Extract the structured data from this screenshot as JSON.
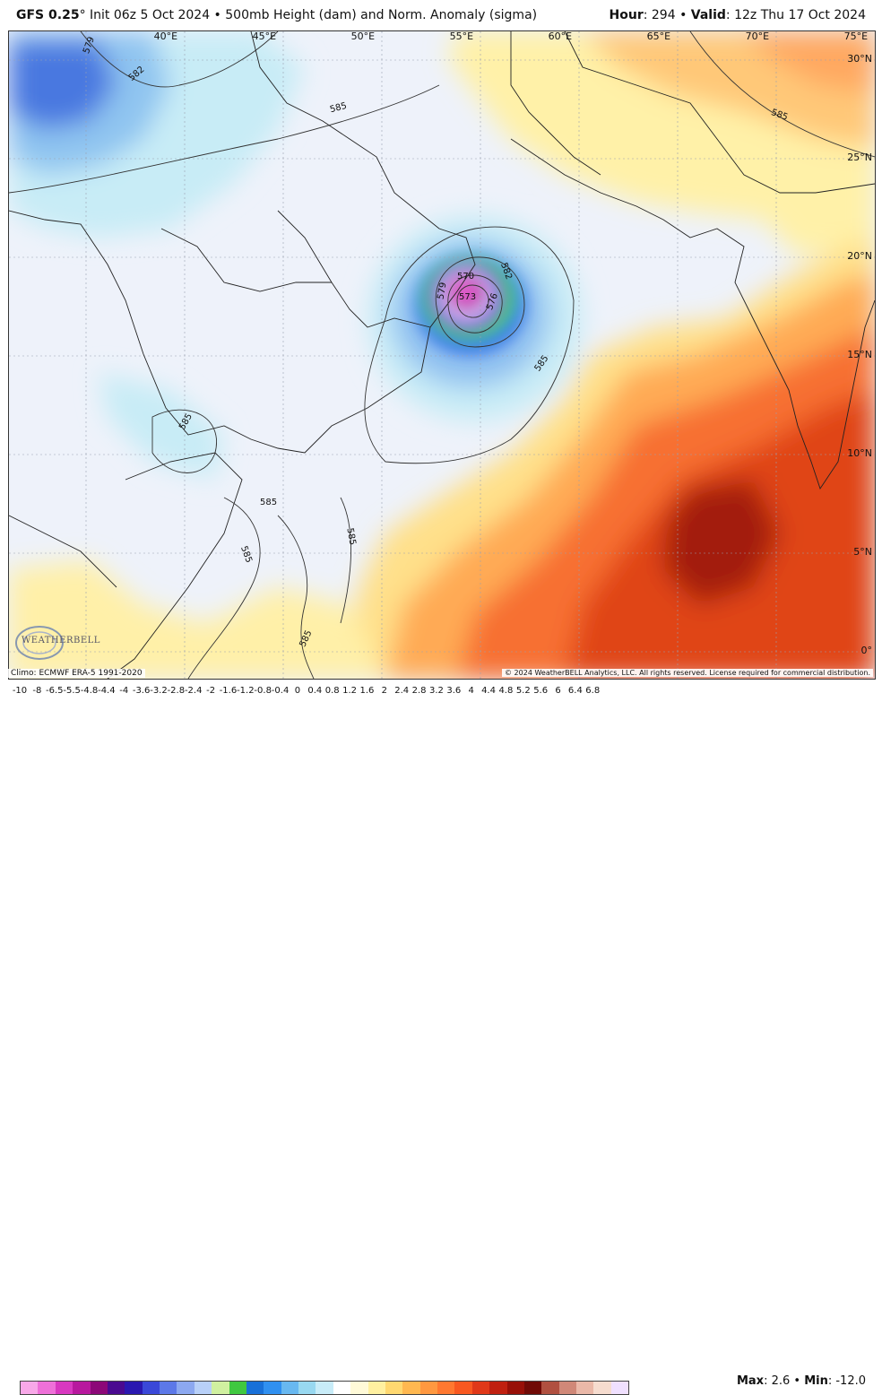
{
  "header": {
    "model": "GFS 0.25",
    "degree": "°",
    "init": " Init 06z 5 Oct 2024 • 500mb Height (dam) and Norm. Anomaly (sigma)",
    "hour_label": "Hour",
    "hour_value": ": 294 • ",
    "valid_label": "Valid",
    "valid_value": ": 12z Thu 17 Oct 2024"
  },
  "map": {
    "lon_labels": [
      {
        "text": "40°E",
        "lon": 40
      },
      {
        "text": "45°E",
        "lon": 45
      },
      {
        "text": "50°E",
        "lon": 50
      },
      {
        "text": "55°E",
        "lon": 55
      },
      {
        "text": "60°E",
        "lon": 60
      },
      {
        "text": "65°E",
        "lon": 65
      },
      {
        "text": "70°E",
        "lon": 70
      },
      {
        "text": "75°E",
        "lon": 75
      }
    ],
    "lat_labels": [
      {
        "text": "30°N",
        "lat": 30
      },
      {
        "text": "25°N",
        "lat": 25
      },
      {
        "text": "20°N",
        "lat": 20
      },
      {
        "text": "15°N",
        "lat": 15
      },
      {
        "text": "10°N",
        "lat": 10
      },
      {
        "text": "5°N",
        "lat": 5
      },
      {
        "text": "0°",
        "lat": 0
      }
    ],
    "contour_labels": [
      "579",
      "582",
      "585",
      "585",
      "585",
      "585",
      "585",
      "585",
      "585",
      "585",
      "570",
      "573",
      "576",
      "579",
      "582"
    ],
    "logo_text": "WEATHERBELL"
  },
  "footer": {
    "climo": "Climo: ECMWF ERA-5 1991-2020",
    "copyright": "© 2024 WeatherBELL Analytics, LLC. All rights reserved. License required for commercial distribution."
  },
  "legend": {
    "ticks": [
      "-10",
      "-8",
      "-6.5",
      "-5.5",
      "-4.8",
      "-4.4",
      "-4",
      "-3.6",
      "-3.2",
      "-2.8",
      "-2.4",
      "-2",
      "-1.6",
      "-1.2",
      "-0.8",
      "-0.4",
      "0",
      "0.4",
      "0.8",
      "1.2",
      "1.6",
      "2",
      "2.4",
      "2.8",
      "3.2",
      "3.6",
      "4",
      "4.4",
      "4.8",
      "5.2",
      "5.6",
      "6",
      "6.4",
      "6.8"
    ],
    "colors": [
      "#f8a8e8",
      "#ee70d8",
      "#d838c0",
      "#b8189e",
      "#8c0878",
      "#4a0a90",
      "#2a18b0",
      "#3a48d8",
      "#5c78e8",
      "#8ca8f0",
      "#b8d0f8",
      "#d0f0a0",
      "#40c840",
      "#1870d8",
      "#3090f0",
      "#68b8f0",
      "#98d8f0",
      "#c8ecf8",
      "#ffffff",
      "#fffad8",
      "#fff0a0",
      "#ffd870",
      "#ffb850",
      "#ff9840",
      "#ff7830",
      "#f85820",
      "#e03818",
      "#c02010",
      "#981008",
      "#700a06",
      "#b05040",
      "#d08878",
      "#eab8a8",
      "#f6dccf",
      "#f0e0ff"
    ],
    "max_label": "Max",
    "max_value": ": 2.6 • ",
    "min_label": "Min",
    "min_value": ": -12.0"
  }
}
